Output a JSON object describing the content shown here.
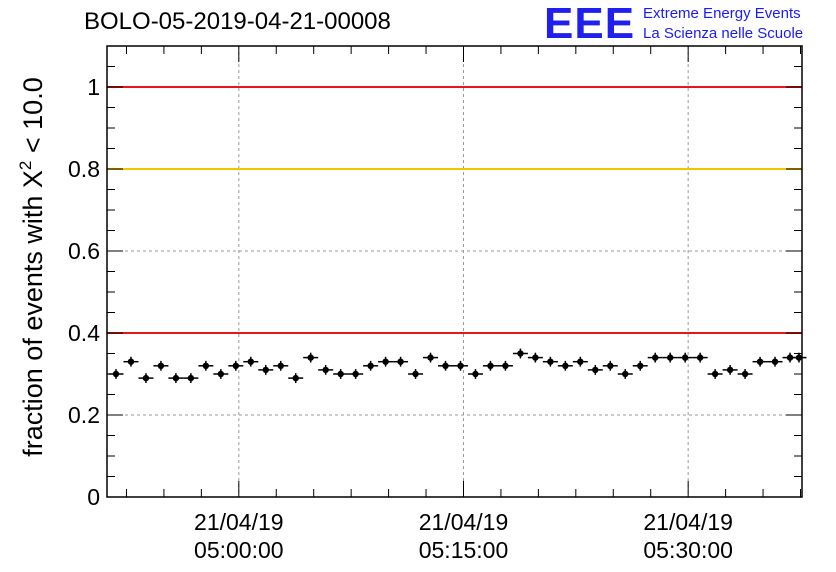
{
  "title": "BOLO-05-2019-04-21-00008",
  "logo": {
    "letters": "EEE",
    "line1": "Extreme Energy Events",
    "line2": "La Scienza nelle Scuole"
  },
  "chart_data": {
    "type": "scatter",
    "title": "BOLO-05-2019-04-21-00008",
    "ylabel_prefix": "fraction of events with ",
    "ylabel_symbol": "X",
    "ylabel_sup": "2",
    "ylabel_suffix": " < 10.0",
    "xlabel": "",
    "x_unit": "minutes after 21/04/19 05:00:00",
    "xlim": [
      -8.8,
      37.6
    ],
    "ylim": [
      0,
      1.1
    ],
    "yticks": [
      0,
      0.2,
      0.4,
      0.6,
      0.8,
      1
    ],
    "ytick_labels": [
      "0",
      "0.2",
      "0.4",
      "0.6",
      "0.8",
      "1"
    ],
    "xticks": [
      0,
      15,
      30
    ],
    "xtick_labels": [
      {
        "date": "21/04/19",
        "time": "05:00:00"
      },
      {
        "date": "21/04/19",
        "time": "05:15:00"
      },
      {
        "date": "21/04/19",
        "time": "05:30:00"
      }
    ],
    "grid": true,
    "reference_lines": [
      {
        "y": 1.0,
        "color": "#e8161b"
      },
      {
        "y": 0.8,
        "color": "#f5c400"
      },
      {
        "y": 0.4,
        "color": "#e8161b"
      }
    ],
    "points": {
      "x": [
        -8.2,
        -7.2,
        -6.2,
        -5.2,
        -4.2,
        -3.2,
        -2.2,
        -1.2,
        -0.2,
        0.8,
        1.8,
        2.8,
        3.8,
        4.8,
        5.8,
        6.8,
        7.8,
        8.8,
        9.8,
        10.8,
        11.8,
        12.8,
        13.8,
        14.8,
        15.8,
        16.8,
        17.8,
        18.8,
        19.8,
        20.8,
        21.8,
        22.8,
        23.8,
        24.8,
        25.8,
        26.8,
        27.8,
        28.8,
        29.8,
        30.8,
        31.8,
        32.8,
        33.8,
        34.8,
        35.8,
        36.8,
        37.4
      ],
      "y": [
        0.3,
        0.33,
        0.29,
        0.32,
        0.29,
        0.29,
        0.32,
        0.3,
        0.32,
        0.33,
        0.31,
        0.32,
        0.29,
        0.34,
        0.31,
        0.3,
        0.3,
        0.32,
        0.33,
        0.33,
        0.3,
        0.34,
        0.32,
        0.32,
        0.3,
        0.32,
        0.32,
        0.35,
        0.34,
        0.33,
        0.32,
        0.33,
        0.31,
        0.32,
        0.3,
        0.32,
        0.34,
        0.34,
        0.34,
        0.34,
        0.3,
        0.31,
        0.3,
        0.33,
        0.33,
        0.34,
        0.34
      ],
      "y_err": 0.012,
      "x_err": 0.5,
      "color": "#000000"
    }
  }
}
